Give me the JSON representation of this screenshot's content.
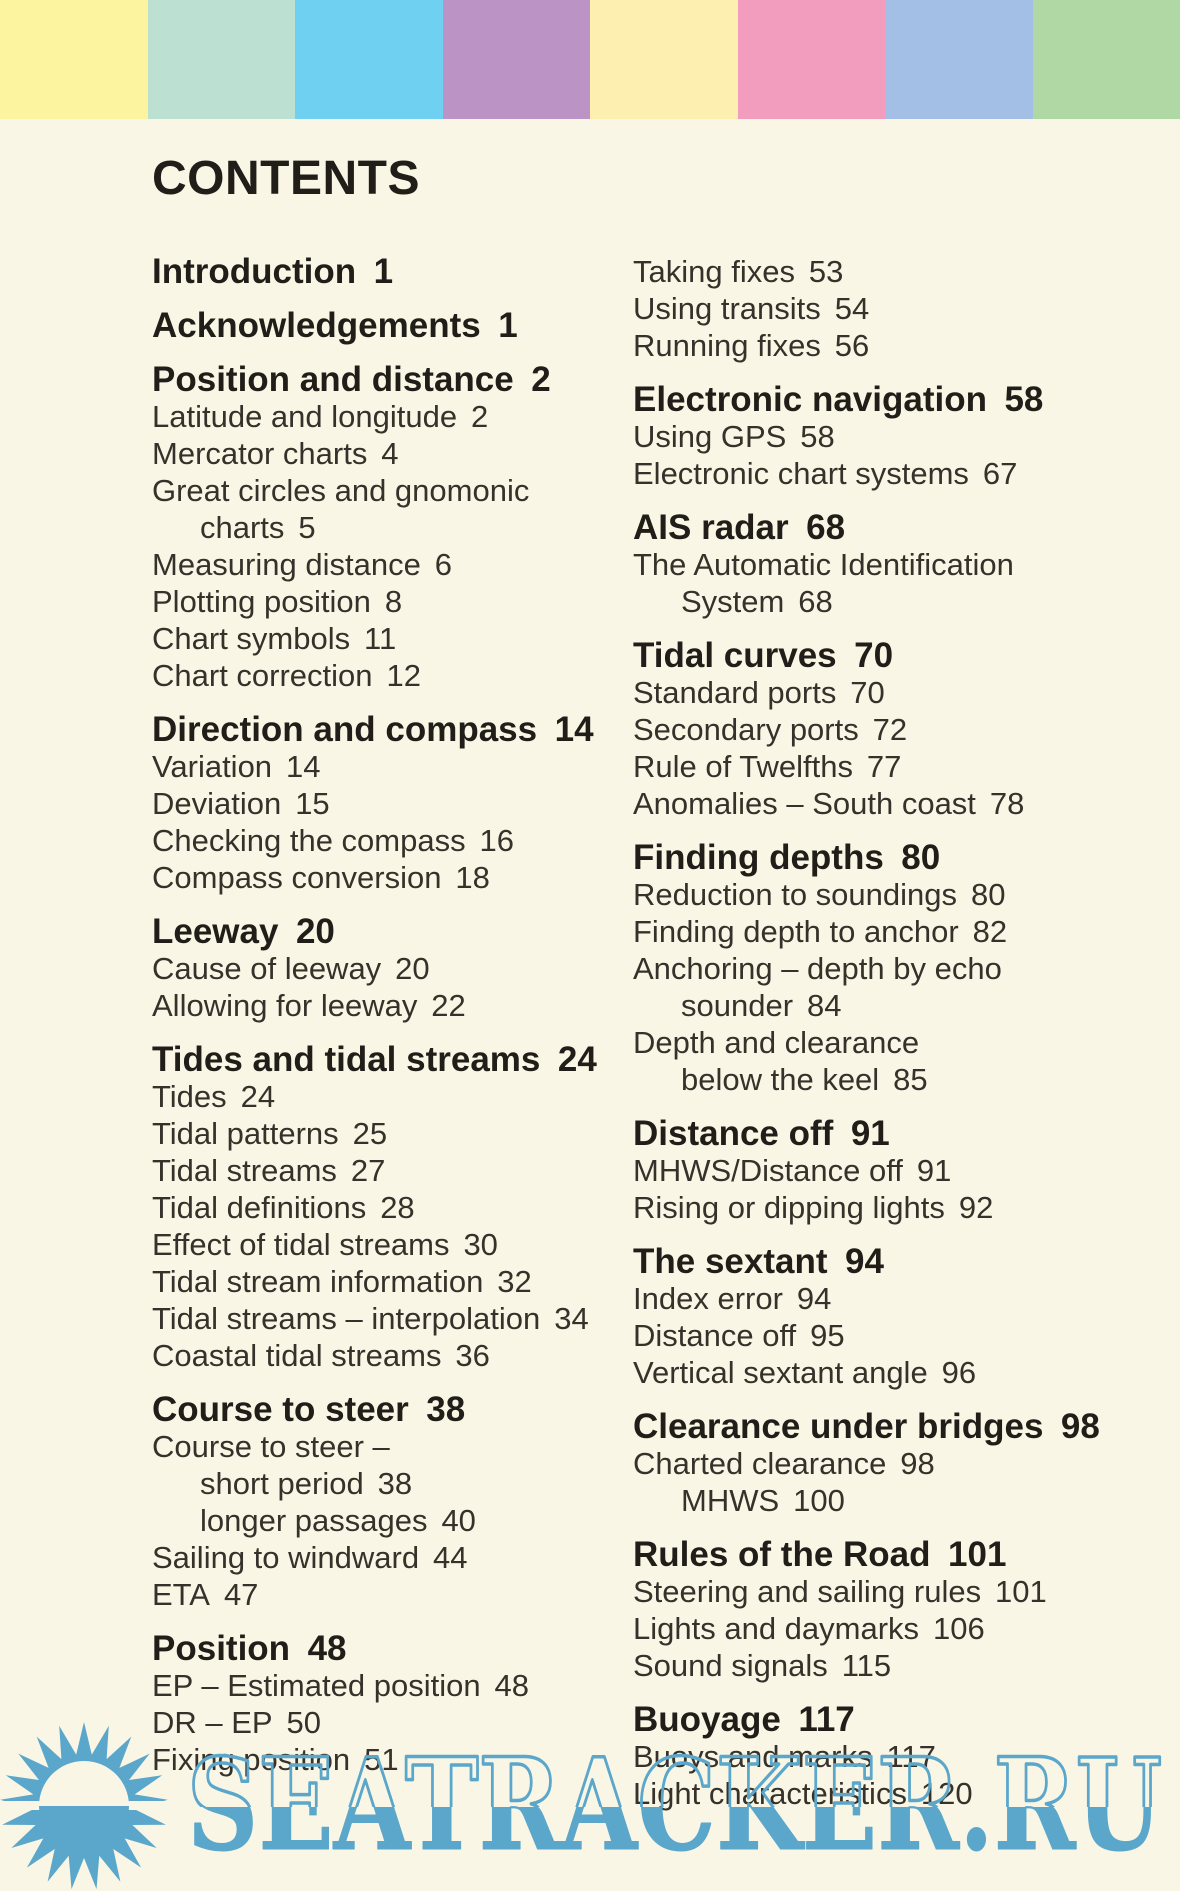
{
  "title": "CONTENTS",
  "background_color": "#FAF6E5",
  "top_band": {
    "colors": [
      "#FCF49E",
      "#BCE0D2",
      "#6FD0F2",
      "#BB93C5",
      "#FCEFAF",
      "#F29DBE",
      "#A3BFE5",
      "#B0D8A4"
    ]
  },
  "watermark": {
    "text": "SEATRACKER.RU",
    "color": "#5BA7CB",
    "icon": "sun-over-water"
  },
  "left_column": {
    "sections": [
      {
        "heading": {
          "text": "Introduction",
          "page": "1"
        },
        "items": []
      },
      {
        "heading": {
          "text": "Acknowledgements",
          "page": "1"
        },
        "items": []
      },
      {
        "heading": {
          "text": "Position and distance",
          "page": "2"
        },
        "items": [
          {
            "text": "Latitude and longitude",
            "page": "2"
          },
          {
            "text": "Mercator charts",
            "page": "4"
          },
          {
            "text": "Great circles and gnomonic",
            "page": ""
          },
          {
            "text": "charts",
            "page": "5",
            "indent": true
          },
          {
            "text": "Measuring distance",
            "page": "6"
          },
          {
            "text": "Plotting position",
            "page": "8"
          },
          {
            "text": "Chart symbols",
            "page": "11"
          },
          {
            "text": "Chart correction",
            "page": "12"
          }
        ]
      },
      {
        "heading": {
          "text": "Direction and compass",
          "page": "14"
        },
        "items": [
          {
            "text": "Variation",
            "page": "14"
          },
          {
            "text": "Deviation",
            "page": "15"
          },
          {
            "text": "Checking the compass",
            "page": "16"
          },
          {
            "text": "Compass conversion",
            "page": "18"
          }
        ]
      },
      {
        "heading": {
          "text": "Leeway",
          "page": "20"
        },
        "items": [
          {
            "text": "Cause of leeway",
            "page": "20"
          },
          {
            "text": "Allowing for leeway",
            "page": "22"
          }
        ]
      },
      {
        "heading": {
          "text": "Tides and tidal streams",
          "page": "24"
        },
        "items": [
          {
            "text": "Tides",
            "page": "24"
          },
          {
            "text": "Tidal patterns",
            "page": "25"
          },
          {
            "text": "Tidal streams",
            "page": "27"
          },
          {
            "text": "Tidal definitions",
            "page": "28"
          },
          {
            "text": "Effect of tidal streams",
            "page": "30"
          },
          {
            "text": "Tidal stream information",
            "page": "32"
          },
          {
            "text": "Tidal streams – interpolation",
            "page": "34"
          },
          {
            "text": "Coastal tidal streams",
            "page": "36"
          }
        ]
      },
      {
        "heading": {
          "text": "Course to steer",
          "page": "38"
        },
        "items": [
          {
            "text": "Course to steer –",
            "page": ""
          },
          {
            "text": "short period",
            "page": "38",
            "indent": true
          },
          {
            "text": "longer passages",
            "page": "40",
            "indent": true
          },
          {
            "text": "Sailing to windward",
            "page": "44"
          },
          {
            "text": "ETA",
            "page": "47"
          }
        ]
      },
      {
        "heading": {
          "text": "Position",
          "page": "48"
        },
        "items": [
          {
            "text": "EP – Estimated position",
            "page": "48"
          },
          {
            "text": "DR – EP",
            "page": "50"
          },
          {
            "text": "Fixing position",
            "page": "51"
          }
        ]
      }
    ]
  },
  "right_column": {
    "sections": [
      {
        "heading": null,
        "items": [
          {
            "text": "Taking fixes",
            "page": "53"
          },
          {
            "text": "Using transits",
            "page": "54"
          },
          {
            "text": "Running fixes",
            "page": "56"
          }
        ]
      },
      {
        "heading": {
          "text": "Electronic navigation",
          "page": "58"
        },
        "items": [
          {
            "text": "Using GPS",
            "page": "58"
          },
          {
            "text": "Electronic chart systems",
            "page": "67"
          }
        ]
      },
      {
        "heading": {
          "text": "AIS radar",
          "page": "68"
        },
        "items": [
          {
            "text": "The Automatic Identification",
            "page": ""
          },
          {
            "text": "System",
            "page": "68",
            "indent": true
          }
        ]
      },
      {
        "heading": {
          "text": "Tidal curves",
          "page": "70"
        },
        "items": [
          {
            "text": "Standard ports",
            "page": "70"
          },
          {
            "text": "Secondary ports",
            "page": "72"
          },
          {
            "text": "Rule of Twelfths",
            "page": "77"
          },
          {
            "text": "Anomalies – South coast",
            "page": "78"
          }
        ]
      },
      {
        "heading": {
          "text": "Finding depths",
          "page": "80"
        },
        "items": [
          {
            "text": "Reduction to soundings",
            "page": "80"
          },
          {
            "text": "Finding depth to anchor",
            "page": "82"
          },
          {
            "text": "Anchoring – depth by echo",
            "page": ""
          },
          {
            "text": "sounder",
            "page": "84",
            "indent": true
          },
          {
            "text": "Depth and clearance",
            "page": ""
          },
          {
            "text": "below the keel",
            "page": "85",
            "indent": true
          }
        ]
      },
      {
        "heading": {
          "text": "Distance off",
          "page": "91"
        },
        "items": [
          {
            "text": "MHWS/Distance off",
            "page": "91"
          },
          {
            "text": "Rising or dipping lights",
            "page": "92"
          }
        ]
      },
      {
        "heading": {
          "text": "The sextant",
          "page": "94"
        },
        "items": [
          {
            "text": "Index error",
            "page": "94"
          },
          {
            "text": "Distance off",
            "page": "95"
          },
          {
            "text": "Vertical sextant angle",
            "page": "96"
          }
        ]
      },
      {
        "heading": {
          "text": "Clearance under bridges",
          "page": "98"
        },
        "items": [
          {
            "text": "Charted clearance",
            "page": "98"
          },
          {
            "text": "MHWS",
            "page": "100",
            "indent": true
          }
        ]
      },
      {
        "heading": {
          "text": "Rules of the Road",
          "page": "101"
        },
        "items": [
          {
            "text": "Steering and sailing rules",
            "page": "101"
          },
          {
            "text": "Lights and daymarks",
            "page": "106"
          },
          {
            "text": "Sound signals",
            "page": "115"
          }
        ]
      },
      {
        "heading": {
          "text": "Buoyage",
          "page": "117"
        },
        "items": [
          {
            "text": "Buoys and marks",
            "page": "117"
          },
          {
            "text": "Light characteristics",
            "page": "120"
          }
        ]
      }
    ]
  }
}
